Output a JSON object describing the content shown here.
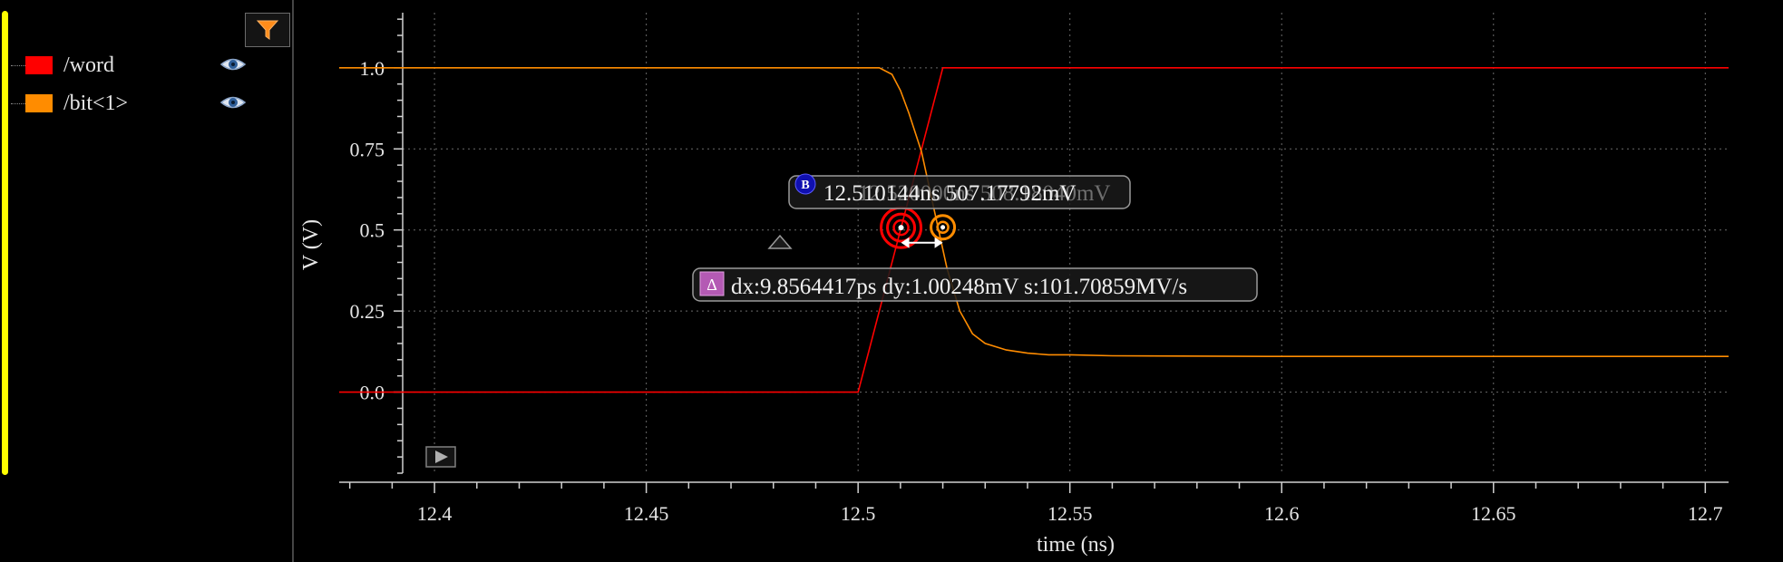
{
  "legend": {
    "items": [
      {
        "label": "/word",
        "color": "#ff0000",
        "icon": "eye-icon"
      },
      {
        "label": "/bit<1>",
        "color": "#ff8c00",
        "icon": "eye-icon"
      }
    ],
    "filter_icon": "filter-icon",
    "sidebar_marker_color": "#ffff00"
  },
  "cursor": {
    "marker_b_label": "12.510144ns 507.17792mV",
    "marker_b_badge": "B",
    "marker_a_label": "12.520000ns 508.18040mV",
    "marker_a_badge": "A",
    "delta_badge": "Δ",
    "delta_label": "dx:9.8564417ps dy:1.00248mV s:101.70859MV/s"
  },
  "chart_data": {
    "type": "line",
    "title": "",
    "xlabel": "time (ns)",
    "ylabel": "V (V)",
    "xlim": [
      12.3775,
      12.7055
    ],
    "ylim": [
      -0.25,
      1.17
    ],
    "x_ticks": [
      12.4,
      12.45,
      12.5,
      12.55,
      12.6,
      12.65,
      12.7
    ],
    "x_tick_labels": [
      "12.4",
      "12.45",
      "12.5",
      "12.55",
      "12.6",
      "12.65",
      "12.7"
    ],
    "y_ticks": [
      1.0,
      0.75,
      0.5,
      0.25,
      0.0
    ],
    "y_tick_labels": [
      "1.0",
      "0.75",
      "0.5",
      "0.25",
      "0.0"
    ],
    "grid": true,
    "background": "#000000",
    "series": [
      {
        "name": "/word",
        "color": "#ff0000",
        "x": [
          12.3775,
          12.5,
          12.52,
          12.7055
        ],
        "y": [
          0.0,
          0.0,
          1.0,
          1.0
        ]
      },
      {
        "name": "/bit<1>",
        "color": "#ff8c00",
        "x": [
          12.3775,
          12.505,
          12.508,
          12.51,
          12.512,
          12.515,
          12.518,
          12.521,
          12.524,
          12.527,
          12.53,
          12.535,
          12.54,
          12.545,
          12.55,
          12.56,
          12.6,
          12.7055
        ],
        "y": [
          1.0,
          1.0,
          0.98,
          0.93,
          0.86,
          0.74,
          0.56,
          0.38,
          0.25,
          0.18,
          0.15,
          0.13,
          0.12,
          0.115,
          0.115,
          0.112,
          0.11,
          0.11
        ]
      }
    ],
    "markers": [
      {
        "name": "B",
        "series": "/word",
        "x": 12.510144,
        "y": 0.50718
      },
      {
        "name": "A",
        "series": "/bit<1>",
        "x": 12.52,
        "y": 0.50818
      }
    ]
  }
}
